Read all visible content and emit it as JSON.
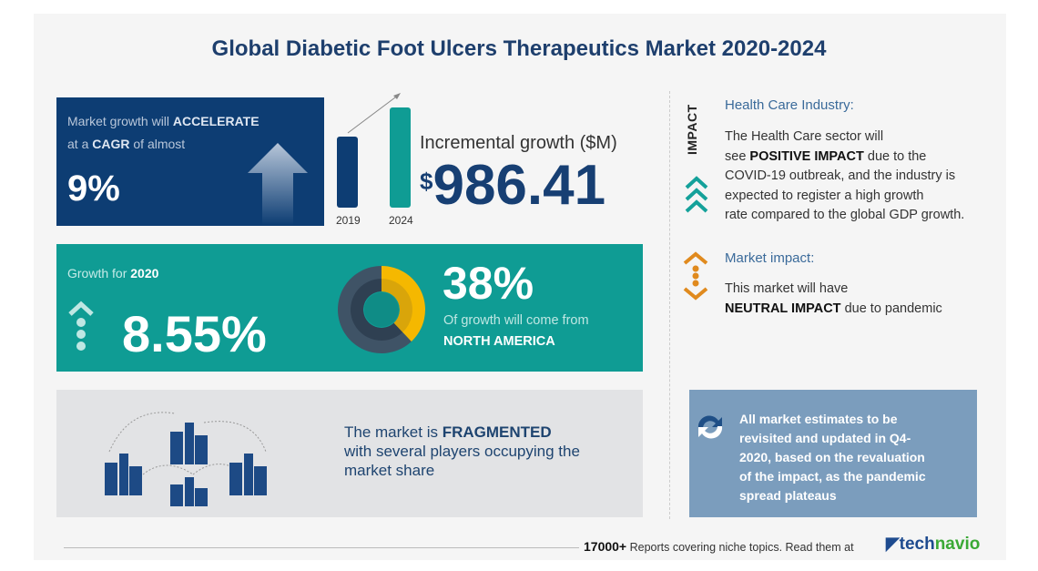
{
  "title": "Global Diabetic Foot Ulcers Therapeutics Market 2020-2024",
  "cagr": {
    "line1_pre": "Market growth will",
    "line1_bold": "ACCELERATE",
    "line2_pre": "at a",
    "line2_bold": "CAGR",
    "line2_post": "of almost",
    "value": "9%"
  },
  "incremental": {
    "label": "Incremental growth ($M)",
    "currency": "$",
    "value": "986.41",
    "bars": [
      {
        "year": "2019"
      },
      {
        "year": "2024"
      }
    ]
  },
  "growth2020": {
    "label": "Growth for",
    "year": "2020",
    "value": "8.55%"
  },
  "region": {
    "value": "38%",
    "share": 38,
    "line": "Of growth will come from",
    "name": "NORTH AMERICA"
  },
  "fragmented": {
    "pre": "The market is",
    "bold": "FRAGMENTED",
    "line2": "with several players occupying the",
    "line3": "market share"
  },
  "impact": {
    "vertical_label": "IMPACT",
    "industry_head": "Health Care Industry:",
    "industry_lines": [
      "The Health Care sector will"
    ],
    "industry_see": "see",
    "industry_bold": "POSITIVE IMPACT",
    "industry_after": "due to the",
    "industry_rest": [
      "COVID-19 outbreak, and the industry is",
      "expected to register a high growth",
      "rate compared to the global GDP growth."
    ],
    "market_head": "Market impact:",
    "market_line1": "This market will have",
    "market_bold": "NEUTRAL IMPACT",
    "market_after": "due to pandemic"
  },
  "notice": [
    "All market estimates to be",
    "revisited and updated in Q4-",
    "2020, based on the revaluation",
    "of the impact, as the pandemic",
    "spread plateaus"
  ],
  "footer": {
    "count": "17000+",
    "text": "Reports covering niche topics. Read them at",
    "brand_a": "tech",
    "brand_b": "navio"
  },
  "colors": {
    "navy": "#0d3d73",
    "teal": "#0f9c94",
    "yellow": "#f5b800",
    "orange": "#e08a1e"
  }
}
